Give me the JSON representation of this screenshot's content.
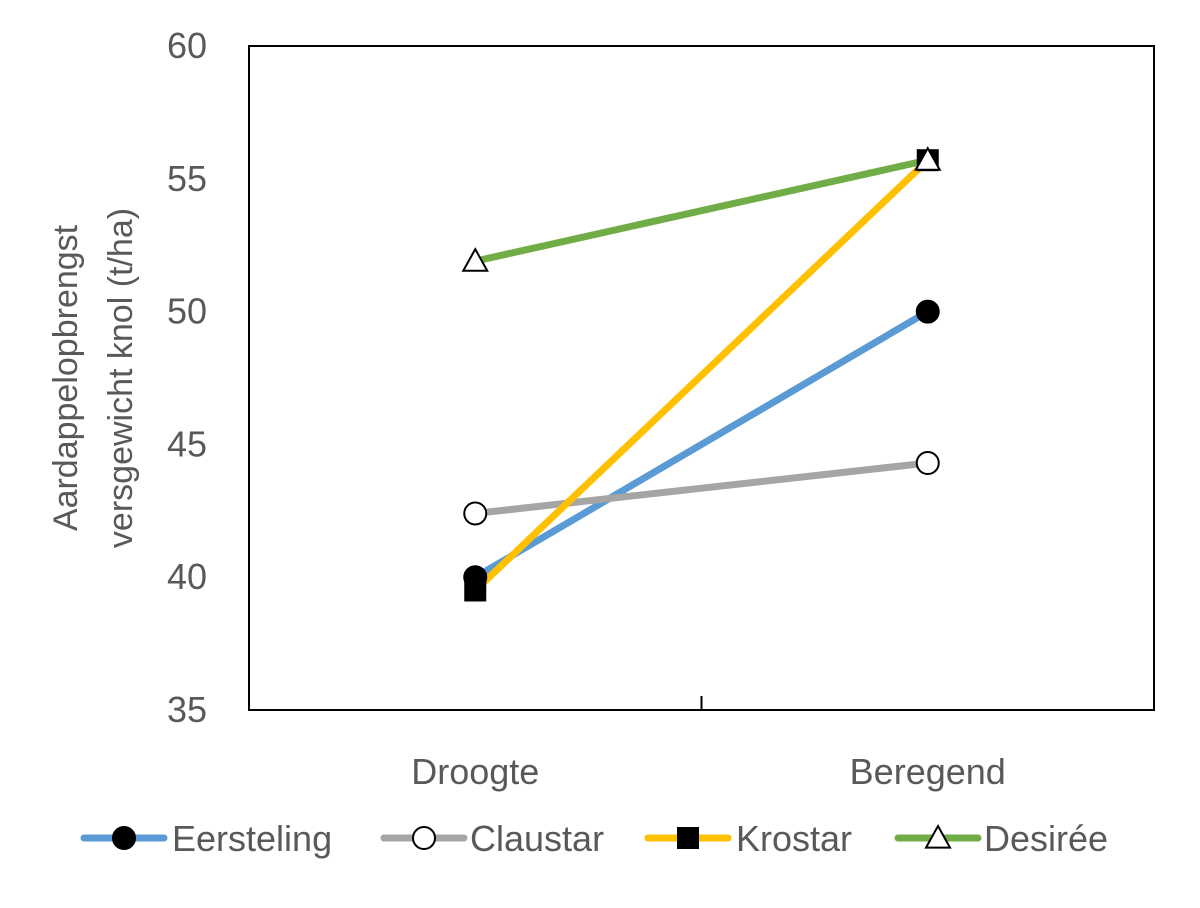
{
  "chart_data": {
    "type": "line",
    "categories": [
      "Droogte",
      "Beregend"
    ],
    "ylabel_lines": [
      "Aardappelopbrengst",
      "versgewicht knol (t/ha)"
    ],
    "xlabel": "",
    "ylim": [
      35,
      60
    ],
    "yticks": [
      35,
      40,
      45,
      50,
      55,
      60
    ],
    "grid": false,
    "legend_position": "bottom",
    "series": [
      {
        "name": "Eersteling",
        "values": [
          40.0,
          50.0
        ],
        "color": "#5b9bd5",
        "marker": "filled-circle"
      },
      {
        "name": "Claustar",
        "values": [
          42.4,
          44.3
        ],
        "color": "#a5a5a5",
        "marker": "open-circle"
      },
      {
        "name": "Krostar",
        "values": [
          39.5,
          55.7
        ],
        "color": "#ffc000",
        "marker": "filled-square"
      },
      {
        "name": "Desirée",
        "values": [
          51.9,
          55.7
        ],
        "color": "#70ad47",
        "marker": "open-triangle"
      }
    ]
  }
}
